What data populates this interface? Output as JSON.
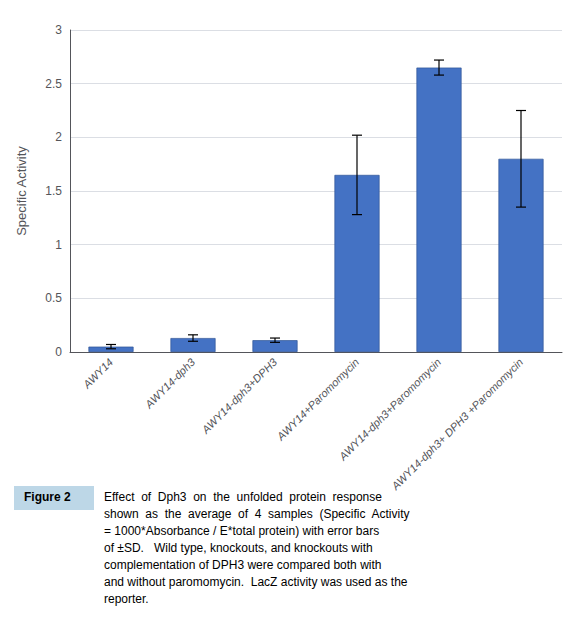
{
  "chart_data": {
    "type": "bar",
    "categories": [
      "AWY14",
      "AWY14-dph3",
      "AWY14-dph3+DPH3",
      "AWY14+Paromomycin",
      "AWY14-dph3+Paromomycin",
      "AWY14-dph3+ DPH3 +Paromomycin"
    ],
    "values": [
      0.05,
      0.13,
      0.11,
      1.65,
      2.65,
      1.8
    ],
    "errors": [
      0.02,
      0.03,
      0.02,
      0.37,
      0.07,
      0.45
    ],
    "color": "#4472C4",
    "ylabel": "Specific Activity",
    "ylim": [
      0,
      3.0
    ],
    "yticks": [
      0,
      0.5,
      1,
      1.5,
      2,
      2.5,
      3
    ],
    "grid": true,
    "figure_label": "Figure 2",
    "caption": "Effect  of  Dph3  on  the  unfolded  protein  response\nshown  as  the  average  of  4  samples  (Specific  Activity\n= 1000*Absorbance / E*total protein) with error bars\nof ±SD.   Wild type, knockouts, and knockouts with\ncomplementation of DPH3 were compared both with\nand without paromomycin.  LacZ activity was used as the\nreporter."
  }
}
